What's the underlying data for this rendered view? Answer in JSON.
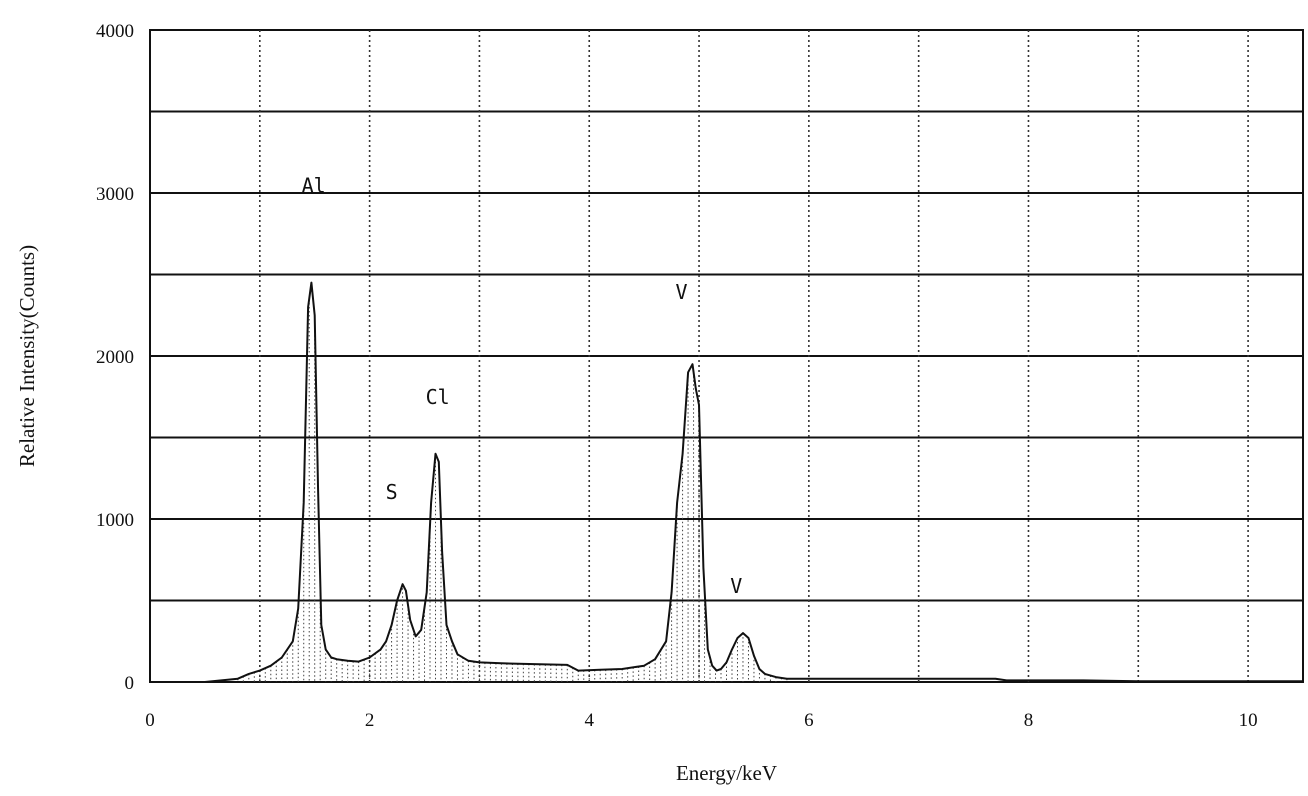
{
  "chart_data": {
    "type": "line",
    "title": "",
    "xlabel": "Energy/keV",
    "ylabel": "Relative Intensity(Counts)",
    "xlim": [
      0,
      10.5
    ],
    "ylim": [
      0,
      4000
    ],
    "x_ticks": [
      0,
      2,
      4,
      6,
      8,
      10
    ],
    "y_ticks": [
      0,
      1000,
      2000,
      3000,
      4000
    ],
    "x_tick_labels": [
      "0",
      "2",
      "4",
      "6",
      "8",
      "10"
    ],
    "y_tick_labels": [
      "0",
      "1000",
      "2000",
      "3000",
      "4000"
    ],
    "x_gridlines": [
      1,
      2,
      3,
      4,
      5,
      6,
      7,
      8,
      9,
      10
    ],
    "grid": true,
    "legend": "none",
    "peaks": [
      {
        "label": "Al",
        "x": 1.49,
        "y": 2450
      },
      {
        "label": "S",
        "x": 2.31,
        "y": 600
      },
      {
        "label": "Cl",
        "x": 2.62,
        "y": 1400
      },
      {
        "label": "V",
        "x": 4.95,
        "y": 1950
      },
      {
        "label": "V",
        "x": 5.43,
        "y": 300
      }
    ],
    "series": [
      {
        "x": [
          0,
          0.5,
          0.8,
          0.9,
          1.0,
          1.1,
          1.2,
          1.3,
          1.35,
          1.4,
          1.44,
          1.47,
          1.5,
          1.53,
          1.56,
          1.6,
          1.65,
          1.7,
          1.8,
          1.9,
          2.0,
          2.1,
          2.15,
          2.2,
          2.25,
          2.3,
          2.33,
          2.37,
          2.42,
          2.47,
          2.52,
          2.56,
          2.6,
          2.63,
          2.66,
          2.7,
          2.75,
          2.8,
          2.9,
          3.0,
          3.2,
          3.5,
          3.8,
          3.9,
          4.1,
          4.3,
          4.5,
          4.6,
          4.7,
          4.75,
          4.8,
          4.85,
          4.9,
          4.94,
          4.97,
          5.0,
          5.04,
          5.08,
          5.12,
          5.16,
          5.2,
          5.25,
          5.3,
          5.35,
          5.4,
          5.45,
          5.5,
          5.55,
          5.6,
          5.7,
          5.8,
          6.0,
          7.0,
          7.7,
          7.8,
          8.5,
          9.0,
          10.0,
          10.5
        ],
        "y": [
          0,
          0,
          20,
          50,
          70,
          100,
          150,
          250,
          450,
          1100,
          2300,
          2450,
          2250,
          1200,
          350,
          200,
          150,
          140,
          130,
          125,
          150,
          200,
          250,
          350,
          500,
          600,
          560,
          380,
          280,
          320,
          550,
          1100,
          1400,
          1350,
          800,
          350,
          250,
          170,
          130,
          120,
          115,
          110,
          105,
          70,
          75,
          80,
          100,
          140,
          250,
          550,
          1100,
          1400,
          1900,
          1950,
          1800,
          1700,
          700,
          200,
          100,
          70,
          80,
          120,
          200,
          270,
          300,
          270,
          160,
          80,
          50,
          30,
          20,
          20,
          20,
          20,
          10,
          10,
          5,
          5,
          5
        ]
      }
    ]
  }
}
